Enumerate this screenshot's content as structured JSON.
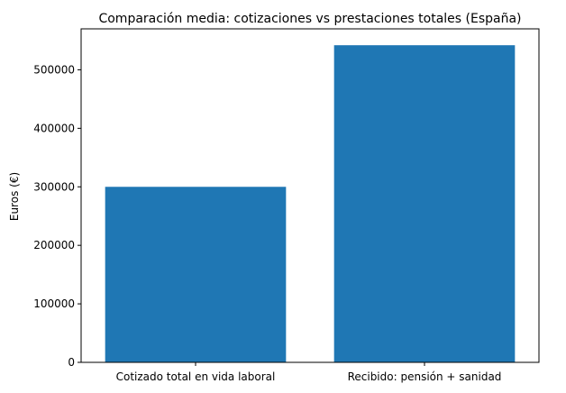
{
  "chart_data": {
    "type": "bar",
    "title": "Comparación media: cotizaciones vs prestaciones totales (España)",
    "xlabel": "",
    "ylabel": "Euros (€)",
    "categories": [
      "Cotizado total en vida laboral",
      "Recibido: pensión + sanidad"
    ],
    "values": [
      300000,
      542000
    ],
    "ylim": [
      0,
      570000
    ],
    "yticks": [
      0,
      100000,
      200000,
      300000,
      400000,
      500000
    ],
    "ytick_labels": [
      "0",
      "100000",
      "200000",
      "300000",
      "400000",
      "500000"
    ],
    "grid": false,
    "bar_color": "#1f77b4"
  }
}
